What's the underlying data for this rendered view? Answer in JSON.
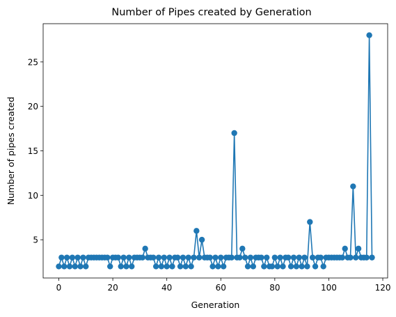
{
  "chart_data": {
    "type": "line",
    "title": "Number of Pipes created by Generation",
    "xlabel": "Generation",
    "ylabel": "Number of pipes created",
    "xlim": [
      -5.8,
      121.8
    ],
    "ylim": [
      0.7,
      29.3
    ],
    "xticks": [
      0,
      20,
      40,
      60,
      80,
      100,
      120
    ],
    "yticks": [
      5,
      10,
      15,
      20,
      25
    ],
    "grid": false,
    "marker": "circle",
    "color": "#1f77b4",
    "series": [
      {
        "x": [
          0,
          1,
          2,
          3,
          4,
          5,
          6,
          7,
          8,
          9,
          10,
          11,
          12,
          13,
          14,
          15,
          16,
          17,
          18,
          19,
          20,
          21,
          22,
          23,
          24,
          25,
          26,
          27,
          28,
          29,
          30,
          31,
          32,
          33,
          34,
          35,
          36,
          37,
          38,
          39,
          40,
          41,
          42,
          43,
          44,
          45,
          46,
          47,
          48,
          49,
          50,
          51,
          52,
          53,
          54,
          55,
          56,
          57,
          58,
          59,
          60,
          61,
          62,
          63,
          64,
          65,
          66,
          67,
          68,
          69,
          70,
          71,
          72,
          73,
          74,
          75,
          76,
          77,
          78,
          79,
          80,
          81,
          82,
          83,
          84,
          85,
          86,
          87,
          88,
          89,
          90,
          91,
          92,
          93,
          94,
          95,
          96,
          97,
          98,
          99,
          100,
          101,
          102,
          103,
          104,
          105,
          106,
          107,
          108,
          109,
          110,
          111,
          112,
          113,
          114,
          115,
          116
        ],
        "values": [
          2,
          3,
          2,
          3,
          2,
          3,
          2,
          3,
          2,
          3,
          2,
          3,
          3,
          3,
          3,
          3,
          3,
          3,
          3,
          2,
          3,
          3,
          3,
          2,
          3,
          2,
          3,
          2,
          3,
          3,
          3,
          3,
          4,
          3,
          3,
          3,
          2,
          3,
          2,
          3,
          2,
          3,
          2,
          3,
          3,
          2,
          3,
          2,
          3,
          2,
          3,
          6,
          3,
          5,
          3,
          3,
          3,
          2,
          3,
          2,
          3,
          2,
          3,
          3,
          3,
          17,
          3,
          3,
          4,
          3,
          2,
          3,
          2,
          3,
          3,
          3,
          2,
          3,
          2,
          2,
          3,
          2,
          3,
          2,
          3,
          3,
          2,
          3,
          2,
          3,
          2,
          3,
          2,
          7,
          3,
          2,
          3,
          3,
          2,
          3,
          3,
          3,
          3,
          3,
          3,
          3,
          4,
          3,
          3,
          11,
          3,
          4,
          3,
          3,
          3,
          28,
          3
        ]
      }
    ]
  }
}
